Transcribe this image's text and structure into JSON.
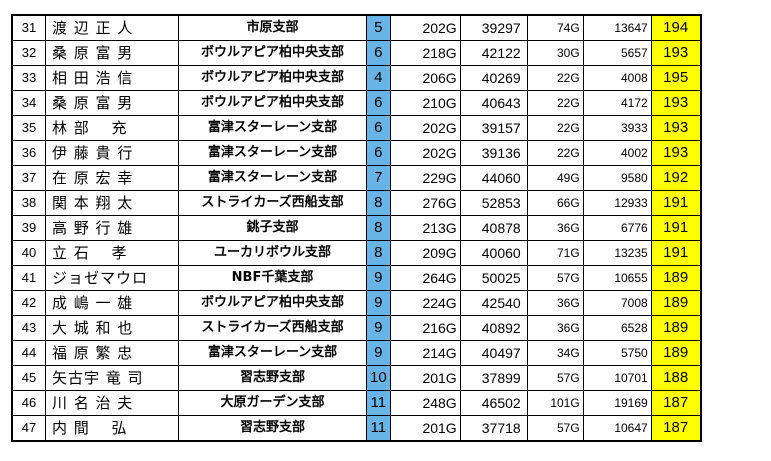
{
  "colors": {
    "rank_highlight": "#69b4e6",
    "average_highlight": "#ffff00"
  },
  "rows": [
    {
      "no": "31",
      "name": "渡 辺 正 人",
      "branch": "市原支部",
      "rank": "5",
      "games": "202G",
      "score": "39297",
      "extra": "74G",
      "total": "13647",
      "avg": "194"
    },
    {
      "no": "32",
      "name": "桑 原 富 男",
      "branch": "ボウルアピア柏中央支部",
      "rank": "6",
      "games": "218G",
      "score": "42122",
      "extra": "30G",
      "total": "5657",
      "avg": "193"
    },
    {
      "no": "33",
      "name": "相 田 浩 信",
      "branch": "ボウルアピア柏中央支部",
      "rank": "4",
      "games": "206G",
      "score": "40269",
      "extra": "22G",
      "total": "4008",
      "avg": "195"
    },
    {
      "no": "34",
      "name": "桑 原 富 男",
      "branch": "ボウルアピア柏中央支部",
      "rank": "6",
      "games": "210G",
      "score": "40643",
      "extra": "22G",
      "total": "4172",
      "avg": "193"
    },
    {
      "no": "35",
      "name": "林 部　 充",
      "branch": "富津スターレーン支部",
      "rank": "6",
      "games": "202G",
      "score": "39157",
      "extra": "22G",
      "total": "3933",
      "avg": "193"
    },
    {
      "no": "36",
      "name": "伊 藤 貴 行",
      "branch": "富津スターレーン支部",
      "rank": "6",
      "games": "202G",
      "score": "39136",
      "extra": "22G",
      "total": "4002",
      "avg": "193"
    },
    {
      "no": "37",
      "name": "在 原 宏 幸",
      "branch": "富津スターレーン支部",
      "rank": "7",
      "games": "229G",
      "score": "44060",
      "extra": "49G",
      "total": "9580",
      "avg": "192"
    },
    {
      "no": "38",
      "name": "関 本 翔 太",
      "branch": "ストライカーズ西船支部",
      "rank": "8",
      "games": "276G",
      "score": "52853",
      "extra": "66G",
      "total": "12933",
      "avg": "191"
    },
    {
      "no": "39",
      "name": "高 野 行 雄",
      "branch": "銚子支部",
      "rank": "8",
      "games": "213G",
      "score": "40878",
      "extra": "36G",
      "total": "6776",
      "avg": "191"
    },
    {
      "no": "40",
      "name": "立 石　 孝",
      "branch": "ユーカリボウル支部",
      "rank": "8",
      "games": "209G",
      "score": "40060",
      "extra": "71G",
      "total": "13235",
      "avg": "191"
    },
    {
      "no": "41",
      "name": "ジョゼマウロ",
      "branch": "NBF千葉支部",
      "rank": "9",
      "games": "264G",
      "score": "50025",
      "extra": "57G",
      "total": "10655",
      "avg": "189"
    },
    {
      "no": "42",
      "name": "成 嶋 一 雄",
      "branch": "ボウルアピア柏中央支部",
      "rank": "9",
      "games": "224G",
      "score": "42540",
      "extra": "36G",
      "total": "7008",
      "avg": "189"
    },
    {
      "no": "43",
      "name": "大 城 和 也",
      "branch": "ストライカーズ西船支部",
      "rank": "9",
      "games": "216G",
      "score": "40892",
      "extra": "36G",
      "total": "6528",
      "avg": "189"
    },
    {
      "no": "44",
      "name": "福 原 繁 忠",
      "branch": "富津スターレーン支部",
      "rank": "9",
      "games": "214G",
      "score": "40497",
      "extra": "34G",
      "total": "5750",
      "avg": "189"
    },
    {
      "no": "45",
      "name": "矢古宇 竜 司",
      "branch": "習志野支部",
      "rank": "10",
      "games": "201G",
      "score": "37899",
      "extra": "57G",
      "total": "10701",
      "avg": "188"
    },
    {
      "no": "46",
      "name": "川 名 治 夫",
      "branch": "大原ガーデン支部",
      "rank": "11",
      "games": "248G",
      "score": "46502",
      "extra": "101G",
      "total": "19169",
      "avg": "187"
    },
    {
      "no": "47",
      "name": "内 間　 弘",
      "branch": "習志野支部",
      "rank": "11",
      "games": "201G",
      "score": "37718",
      "extra": "57G",
      "total": "10647",
      "avg": "187"
    }
  ]
}
